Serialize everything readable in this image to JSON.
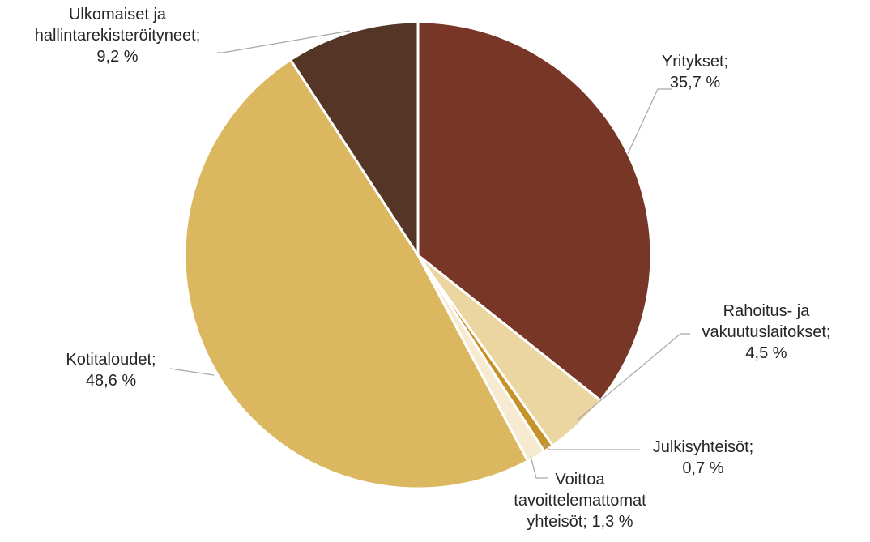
{
  "chart_data": {
    "type": "pie",
    "start_angle_deg": 0,
    "direction": "clockwise",
    "slices": [
      {
        "label_lines": [
          "Yritykset;",
          "35,7 %"
        ],
        "name": "Yritykset",
        "value": 35.7,
        "value_label": "35,7 %",
        "color": "#773626"
      },
      {
        "label_lines": [
          "Rahoitus- ja",
          "vakuutuslaitokset;",
          "4,5 %"
        ],
        "name": "Rahoitus- ja vakuutuslaitokset",
        "value": 4.5,
        "value_label": "4,5 %",
        "color": "#ebd5a0"
      },
      {
        "label_lines": [
          "Julkisyhteisöt;",
          "0,7 %"
        ],
        "name": "Julkisyhteisöt",
        "value": 0.7,
        "value_label": "0,7 %",
        "color": "#c6922a"
      },
      {
        "label_lines": [
          "Voittoa",
          "tavoittelemattomat",
          "yhteisöt; 1,3 %"
        ],
        "name": "Voittoa tavoittelemattomat yhteisöt",
        "value": 1.3,
        "value_label": "1,3 %",
        "color": "#f6ead1"
      },
      {
        "label_lines": [
          "Kotitaloudet;",
          "48,6 %"
        ],
        "name": "Kotitaloudet",
        "value": 48.6,
        "value_label": "48,6 %",
        "color": "#dbb760"
      },
      {
        "label_lines": [
          "Ulkomaiset ja",
          "hallintarekisteröityneet;",
          "9,2 %"
        ],
        "name": "Ulkomaiset ja hallintarekisteröityneet",
        "value": 9.2,
        "value_label": "9,2 %",
        "color": "#553526"
      }
    ],
    "title": "",
    "legend": "none",
    "data_labels": "outside with leader lines"
  }
}
